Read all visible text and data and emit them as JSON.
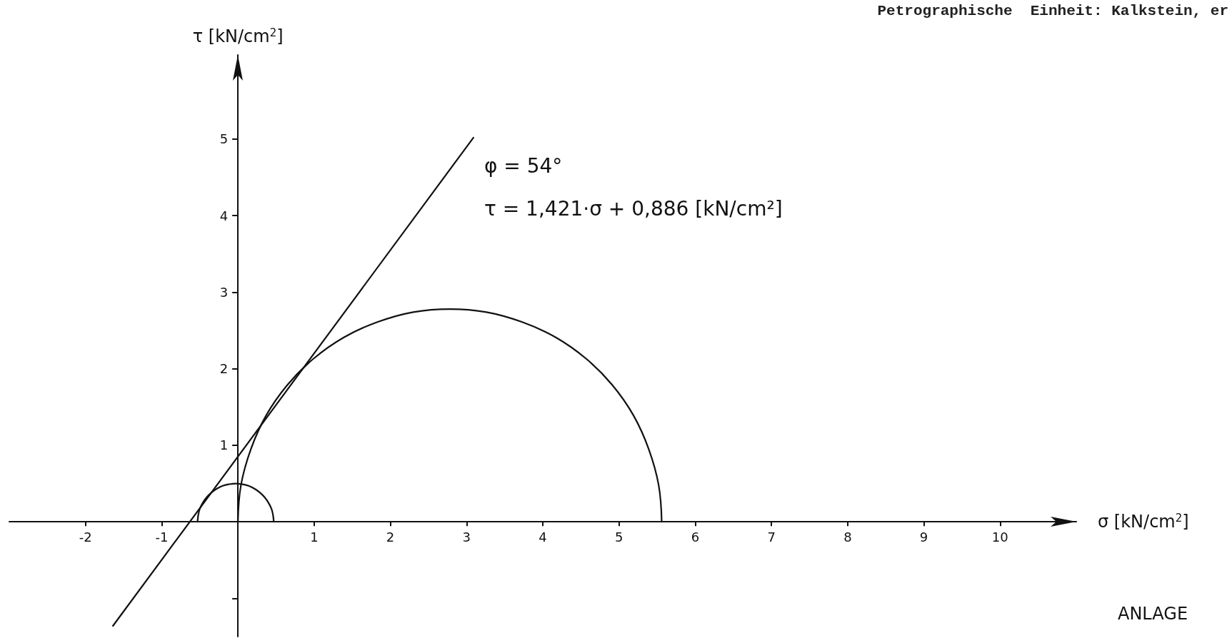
{
  "chart_data": {
    "type": "line",
    "title": "Petrographische  Einheit: Kalkstein, er",
    "xlabel": "σ [kN/cm$^{2}$]",
    "ylabel": "τ [kN/cm$^{2}$]",
    "annotations": [
      "φ = 54°",
      "τ = 1,421·σ + 0,886 [kN/cm²]",
      "ANLAGE"
    ],
    "xlim": [
      -3,
      11
    ],
    "ylim": [
      -1.5,
      6.1
    ],
    "xticks": [
      -2,
      -1,
      1,
      2,
      3,
      4,
      5,
      6,
      7,
      8,
      9,
      10
    ],
    "yticks": [
      {
        "value": -1,
        "label": null
      },
      1,
      2,
      3,
      4,
      5
    ],
    "grid": false,
    "marker": "none",
    "line_style": "solid",
    "series": [
      {
        "color": "#111111",
        "x": [
          -1.64,
          3.09
        ],
        "values": [
          -1.36,
          5.02
        ]
      },
      {
        "color": "#111111",
        "x": [
          -0.53,
          -0.52,
          -0.5,
          -0.46,
          -0.41,
          -0.35,
          -0.28,
          -0.2,
          -0.12,
          -0.03,
          0.06,
          0.14,
          0.22,
          0.29,
          0.35,
          0.4,
          0.44,
          0.46,
          0.47
        ],
        "values": [
          0,
          0.09,
          0.17,
          0.25,
          0.32,
          0.38,
          0.43,
          0.47,
          0.49,
          0.5,
          0.49,
          0.47,
          0.43,
          0.38,
          0.32,
          0.25,
          0.17,
          0.09,
          0
        ]
      },
      {
        "color": "#111111",
        "x": [
          0,
          0.04,
          0.17,
          0.37,
          0.65,
          0.99,
          1.39,
          1.83,
          2.3,
          2.78,
          3.26,
          3.73,
          4.17,
          4.57,
          4.91,
          5.19,
          5.39,
          5.52,
          5.56
        ],
        "values": [
          0,
          0.48,
          0.95,
          1.39,
          1.79,
          2.13,
          2.41,
          2.61,
          2.74,
          2.78,
          2.74,
          2.61,
          2.41,
          2.13,
          1.79,
          1.39,
          0.95,
          0.48,
          0
        ]
      }
    ]
  }
}
